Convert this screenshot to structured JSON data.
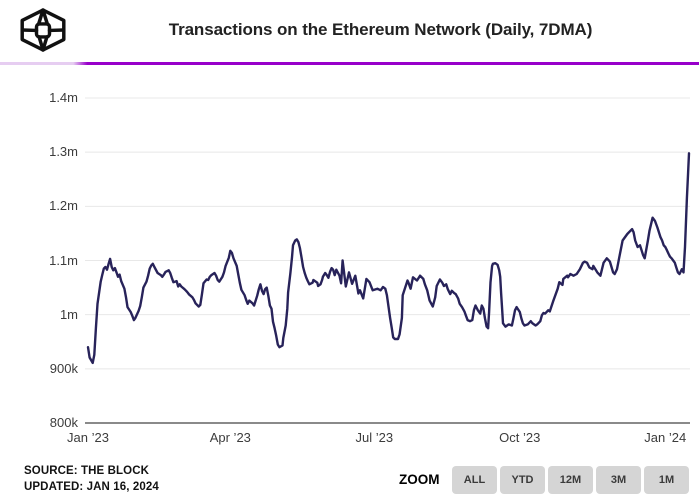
{
  "header": {
    "title": "Transactions on the Ethereum Network (Daily, 7DMA)"
  },
  "accent_color": "#9800ca",
  "chart_data": {
    "type": "line",
    "title": "Transactions on the Ethereum Network (Daily, 7DMA)",
    "xlabel": "",
    "ylabel": "",
    "value_unit": "transactions per day (thousands)",
    "x_unit": "days since 2023-01-01",
    "x_start_date": "2023-01-01",
    "x_end_date": "2024-01-16",
    "xlim": [
      0,
      380
    ],
    "ylim": [
      800,
      1400
    ],
    "grid": "horizontal",
    "legend": "none",
    "line_color": "#28235a",
    "grid_color": "#e8e8e8",
    "axis_color": "#8a8a8a",
    "y_ticks": [
      {
        "label": "800k",
        "value": 800
      },
      {
        "label": "900k",
        "value": 900
      },
      {
        "label": "1m",
        "value": 1000
      },
      {
        "label": "1.1m",
        "value": 1100
      },
      {
        "label": "1.2m",
        "value": 1200
      },
      {
        "label": "1.3m",
        "value": 1300
      },
      {
        "label": "1.4m",
        "value": 1400
      }
    ],
    "x_ticks": [
      {
        "label": "Jan ’23",
        "day": 0
      },
      {
        "label": "Apr ’23",
        "day": 90
      },
      {
        "label": "Jul ’23",
        "day": 181
      },
      {
        "label": "Oct ’23",
        "day": 273
      },
      {
        "label": "Jan ’24",
        "day": 365
      }
    ],
    "series": [
      {
        "name": "Ethereum transactions (Daily, 7DMA)",
        "points": [
          [
            0,
            940
          ],
          [
            1,
            921
          ],
          [
            3,
            911
          ],
          [
            4,
            926
          ],
          [
            5,
            975
          ],
          [
            6,
            1020
          ],
          [
            8,
            1061
          ],
          [
            9,
            1073
          ],
          [
            10,
            1085
          ],
          [
            11,
            1088
          ],
          [
            12,
            1083
          ],
          [
            13,
            1094
          ],
          [
            14,
            1103
          ],
          [
            15,
            1088
          ],
          [
            16,
            1082
          ],
          [
            17,
            1086
          ],
          [
            18,
            1078
          ],
          [
            19,
            1070
          ],
          [
            20,
            1074
          ],
          [
            21,
            1062
          ],
          [
            23,
            1048
          ],
          [
            24,
            1032
          ],
          [
            25,
            1014
          ],
          [
            27,
            1005
          ],
          [
            28,
            998
          ],
          [
            29,
            990
          ],
          [
            30,
            994
          ],
          [
            32,
            1007
          ],
          [
            33,
            1016
          ],
          [
            34,
            1032
          ],
          [
            35,
            1050
          ],
          [
            37,
            1061
          ],
          [
            38,
            1072
          ],
          [
            39,
            1085
          ],
          [
            40,
            1091
          ],
          [
            41,
            1094
          ],
          [
            42,
            1088
          ],
          [
            44,
            1077
          ],
          [
            46,
            1073
          ],
          [
            47,
            1070
          ],
          [
            48,
            1074
          ],
          [
            49,
            1079
          ],
          [
            51,
            1082
          ],
          [
            52,
            1077
          ],
          [
            53,
            1068
          ],
          [
            54,
            1060
          ],
          [
            56,
            1062
          ],
          [
            57,
            1052
          ],
          [
            58,
            1056
          ],
          [
            59,
            1052
          ],
          [
            61,
            1047
          ],
          [
            62,
            1044
          ],
          [
            63,
            1041
          ],
          [
            64,
            1037
          ],
          [
            66,
            1032
          ],
          [
            67,
            1027
          ],
          [
            68,
            1021
          ],
          [
            70,
            1015
          ],
          [
            71,
            1018
          ],
          [
            72,
            1037
          ],
          [
            73,
            1058
          ],
          [
            75,
            1065
          ],
          [
            76,
            1064
          ],
          [
            77,
            1070
          ],
          [
            78,
            1073
          ],
          [
            80,
            1077
          ],
          [
            81,
            1072
          ],
          [
            82,
            1064
          ],
          [
            83,
            1061
          ],
          [
            85,
            1070
          ],
          [
            86,
            1078
          ],
          [
            87,
            1090
          ],
          [
            89,
            1105
          ],
          [
            90,
            1118
          ],
          [
            91,
            1114
          ],
          [
            92,
            1104
          ],
          [
            94,
            1090
          ],
          [
            95,
            1074
          ],
          [
            96,
            1059
          ],
          [
            97,
            1046
          ],
          [
            99,
            1036
          ],
          [
            100,
            1027
          ],
          [
            101,
            1020
          ],
          [
            102,
            1026
          ],
          [
            104,
            1021
          ],
          [
            105,
            1017
          ],
          [
            107,
            1035
          ],
          [
            108,
            1047
          ],
          [
            109,
            1056
          ],
          [
            110,
            1044
          ],
          [
            111,
            1038
          ],
          [
            112,
            1047
          ],
          [
            113,
            1050
          ],
          [
            114,
            1035
          ],
          [
            115,
            1017
          ],
          [
            116,
            1011
          ],
          [
            117,
            987
          ],
          [
            118,
            975
          ],
          [
            119,
            961
          ],
          [
            120,
            945
          ],
          [
            121,
            940
          ],
          [
            123,
            943
          ],
          [
            123.5,
            957
          ],
          [
            125,
            980
          ],
          [
            126,
            1011
          ],
          [
            126.5,
            1041
          ],
          [
            128,
            1077
          ],
          [
            129,
            1106
          ],
          [
            129.6,
            1128
          ],
          [
            131,
            1137
          ],
          [
            132,
            1139
          ],
          [
            133,
            1134
          ],
          [
            134,
            1123
          ],
          [
            135,
            1106
          ],
          [
            136,
            1088
          ],
          [
            137,
            1077
          ],
          [
            138,
            1068
          ],
          [
            139,
            1062
          ],
          [
            140,
            1056
          ],
          [
            142,
            1059
          ],
          [
            142.5,
            1064
          ],
          [
            143.5,
            1062
          ],
          [
            145,
            1059
          ],
          [
            145.5,
            1053
          ],
          [
            147,
            1056
          ],
          [
            148,
            1064
          ],
          [
            148.5,
            1070
          ],
          [
            150,
            1077
          ],
          [
            151,
            1073
          ],
          [
            152,
            1068
          ],
          [
            153,
            1079
          ],
          [
            154,
            1086
          ],
          [
            155,
            1083
          ],
          [
            156,
            1073
          ],
          [
            157,
            1083
          ],
          [
            159,
            1072
          ],
          [
            160,
            1058
          ],
          [
            161,
            1100
          ],
          [
            163,
            1052
          ],
          [
            165,
            1078
          ],
          [
            167,
            1057
          ],
          [
            169,
            1072
          ],
          [
            171,
            1039
          ],
          [
            172,
            1045
          ],
          [
            174,
            1030
          ],
          [
            176,
            1066
          ],
          [
            178,
            1060
          ],
          [
            180,
            1045
          ],
          [
            183,
            1048
          ],
          [
            185,
            1045
          ],
          [
            186.5,
            1051
          ],
          [
            188,
            1048
          ],
          [
            189,
            1036
          ],
          [
            191,
            994
          ],
          [
            192,
            976
          ],
          [
            193,
            958
          ],
          [
            194,
            955
          ],
          [
            196,
            955
          ],
          [
            197,
            964
          ],
          [
            198.5,
            994
          ],
          [
            199,
            1036
          ],
          [
            202,
            1063
          ],
          [
            202.5,
            1060
          ],
          [
            204,
            1048
          ],
          [
            205.5,
            1069
          ],
          [
            208,
            1063
          ],
          [
            210,
            1072
          ],
          [
            212,
            1066
          ],
          [
            213,
            1056
          ],
          [
            214.5,
            1045
          ],
          [
            216,
            1026
          ],
          [
            218,
            1015
          ],
          [
            219.5,
            1032
          ],
          [
            220.5,
            1053
          ],
          [
            222.5,
            1065
          ],
          [
            224,
            1059
          ],
          [
            225,
            1053
          ],
          [
            226.5,
            1056
          ],
          [
            227.5,
            1047
          ],
          [
            229,
            1038
          ],
          [
            230,
            1044
          ],
          [
            231.5,
            1040
          ],
          [
            232.5,
            1038
          ],
          [
            234,
            1030
          ],
          [
            235,
            1020
          ],
          [
            236.5,
            1014
          ],
          [
            238,
            1006
          ],
          [
            239,
            998
          ],
          [
            240,
            990
          ],
          [
            241.5,
            988
          ],
          [
            243,
            990
          ],
          [
            244,
            1008
          ],
          [
            245,
            1017
          ],
          [
            246.5,
            1008
          ],
          [
            248,
            1002
          ],
          [
            249,
            1017
          ],
          [
            250,
            1011
          ],
          [
            251,
            993
          ],
          [
            252,
            978
          ],
          [
            253,
            975
          ],
          [
            253.6,
            1005
          ],
          [
            254.5,
            1060
          ],
          [
            255.5,
            1090
          ],
          [
            256,
            1094
          ],
          [
            257.5,
            1095
          ],
          [
            259,
            1092
          ],
          [
            260,
            1082
          ],
          [
            260.6,
            1070
          ],
          [
            261.2,
            1040
          ],
          [
            261.8,
            1011
          ],
          [
            262.4,
            984
          ],
          [
            264,
            978
          ],
          [
            265,
            980
          ],
          [
            266,
            982
          ],
          [
            268,
            980
          ],
          [
            269,
            993
          ],
          [
            270,
            1008
          ],
          [
            271,
            1014
          ],
          [
            273,
            1005
          ],
          [
            274,
            993
          ],
          [
            275,
            984
          ],
          [
            276,
            980
          ],
          [
            278,
            982
          ],
          [
            280,
            988
          ],
          [
            281,
            984
          ],
          [
            283,
            980
          ],
          [
            284,
            982
          ],
          [
            286,
            988
          ],
          [
            287,
            999
          ],
          [
            288,
            1003
          ],
          [
            289,
            1002
          ],
          [
            291,
            1008
          ],
          [
            292,
            1006
          ],
          [
            294,
            1024
          ],
          [
            297,
            1048
          ],
          [
            298,
            1060
          ],
          [
            300,
            1055
          ],
          [
            300.5,
            1066
          ],
          [
            303,
            1072
          ],
          [
            303.5,
            1069
          ],
          [
            305,
            1075
          ],
          [
            307,
            1072
          ],
          [
            309,
            1075
          ],
          [
            311,
            1084
          ],
          [
            313,
            1096
          ],
          [
            314,
            1098
          ],
          [
            315.5,
            1096
          ],
          [
            317,
            1087
          ],
          [
            319,
            1084
          ],
          [
            319.5,
            1090
          ],
          [
            322,
            1078
          ],
          [
            324,
            1072
          ],
          [
            326,
            1096
          ],
          [
            328,
            1104
          ],
          [
            330,
            1098
          ],
          [
            332,
            1078
          ],
          [
            333,
            1075
          ],
          [
            334.5,
            1084
          ],
          [
            336,
            1107
          ],
          [
            338,
            1137
          ],
          [
            341,
            1149
          ],
          [
            343,
            1155
          ],
          [
            344,
            1158
          ],
          [
            345,
            1152
          ],
          [
            346,
            1137
          ],
          [
            347.5,
            1125
          ],
          [
            349,
            1128
          ],
          [
            351,
            1110
          ],
          [
            352,
            1104
          ],
          [
            354,
            1137
          ],
          [
            355,
            1155
          ],
          [
            357,
            1179
          ],
          [
            358.5,
            1173
          ],
          [
            360,
            1161
          ],
          [
            362,
            1143
          ],
          [
            363,
            1137
          ],
          [
            364,
            1128
          ],
          [
            365,
            1125
          ],
          [
            366,
            1119
          ],
          [
            367,
            1113
          ],
          [
            368,
            1107
          ],
          [
            369,
            1104
          ],
          [
            370,
            1100
          ],
          [
            371,
            1096
          ],
          [
            372,
            1087
          ],
          [
            373,
            1078
          ],
          [
            374,
            1075
          ],
          [
            375.5,
            1084
          ],
          [
            376.5,
            1078
          ],
          [
            377.5,
            1125
          ],
          [
            378.7,
            1215
          ],
          [
            379.4,
            1262
          ],
          [
            380,
            1298
          ]
        ]
      }
    ]
  },
  "footer": {
    "source": "SOURCE: THE BLOCK",
    "updated": "UPDATED: JAN 16, 2024"
  },
  "zoom": {
    "label": "ZOOM",
    "buttons": [
      "ALL",
      "YTD",
      "12M",
      "3M",
      "1M"
    ]
  }
}
